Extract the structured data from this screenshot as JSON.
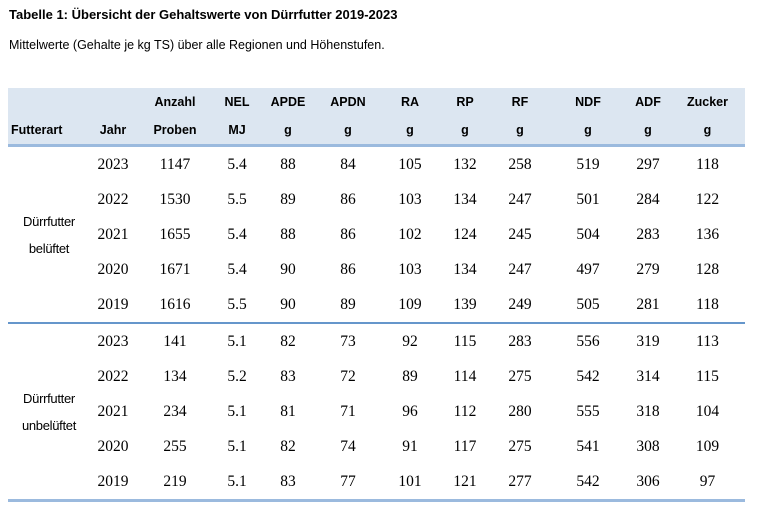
{
  "page": {
    "title": "Tabelle 1: Übersicht der Gehaltswerte von Dürrfutter 2019-2023",
    "subtitle": "Mittelwerte (Gehalte je kg TS) über alle Regionen und Höhenstufen."
  },
  "colors": {
    "header_bg": "#dce6f1",
    "rule_light": "#9bbade",
    "rule_accent": "#6596cb",
    "text": "#000000",
    "background": "#ffffff"
  },
  "table": {
    "columns": [
      {
        "line1": "",
        "line2": "Futterart"
      },
      {
        "line1": "",
        "line2": "Jahr"
      },
      {
        "line1": "Anzahl",
        "line2": "Proben"
      },
      {
        "line1": "NEL",
        "line2": "MJ"
      },
      {
        "line1": "APDE",
        "line2": "g"
      },
      {
        "line1": "APDN",
        "line2": "g"
      },
      {
        "line1": "RA",
        "line2": "g"
      },
      {
        "line1": "RP",
        "line2": "g"
      },
      {
        "line1": "RF",
        "line2": "g"
      },
      {
        "line1": "NDF",
        "line2": "g"
      },
      {
        "line1": "ADF",
        "line2": "g"
      },
      {
        "line1": "Zucker",
        "line2": "g"
      }
    ],
    "groups": [
      {
        "futterart": [
          "Dürrfutter",
          "belüftet"
        ],
        "rows": [
          {
            "jahr": "2023",
            "proben": "1147",
            "nel": "5.4",
            "apde": "88",
            "apdn": "84",
            "ra": "105",
            "rp": "132",
            "rf": "258",
            "ndf": "519",
            "adf": "297",
            "zucker": "118"
          },
          {
            "jahr": "2022",
            "proben": "1530",
            "nel": "5.5",
            "apde": "89",
            "apdn": "86",
            "ra": "103",
            "rp": "134",
            "rf": "247",
            "ndf": "501",
            "adf": "284",
            "zucker": "122"
          },
          {
            "jahr": "2021",
            "proben": "1655",
            "nel": "5.4",
            "apde": "88",
            "apdn": "86",
            "ra": "102",
            "rp": "124",
            "rf": "245",
            "ndf": "504",
            "adf": "283",
            "zucker": "136"
          },
          {
            "jahr": "2020",
            "proben": "1671",
            "nel": "5.4",
            "apde": "90",
            "apdn": "86",
            "ra": "103",
            "rp": "134",
            "rf": "247",
            "ndf": "497",
            "adf": "279",
            "zucker": "128"
          },
          {
            "jahr": "2019",
            "proben": "1616",
            "nel": "5.5",
            "apde": "90",
            "apdn": "89",
            "ra": "109",
            "rp": "139",
            "rf": "249",
            "ndf": "505",
            "adf": "281",
            "zucker": "118"
          }
        ]
      },
      {
        "futterart": [
          "Dürrfutter",
          "unbelüftet"
        ],
        "rows": [
          {
            "jahr": "2023",
            "proben": "141",
            "nel": "5.1",
            "apde": "82",
            "apdn": "73",
            "ra": "92",
            "rp": "115",
            "rf": "283",
            "ndf": "556",
            "adf": "319",
            "zucker": "113"
          },
          {
            "jahr": "2022",
            "proben": "134",
            "nel": "5.2",
            "apde": "83",
            "apdn": "72",
            "ra": "89",
            "rp": "114",
            "rf": "275",
            "ndf": "542",
            "adf": "314",
            "zucker": "115"
          },
          {
            "jahr": "2021",
            "proben": "234",
            "nel": "5.1",
            "apde": "81",
            "apdn": "71",
            "ra": "96",
            "rp": "112",
            "rf": "280",
            "ndf": "555",
            "adf": "318",
            "zucker": "104"
          },
          {
            "jahr": "2020",
            "proben": "255",
            "nel": "5.1",
            "apde": "82",
            "apdn": "74",
            "ra": "91",
            "rp": "117",
            "rf": "275",
            "ndf": "541",
            "adf": "308",
            "zucker": "109"
          },
          {
            "jahr": "2019",
            "proben": "219",
            "nel": "5.1",
            "apde": "83",
            "apdn": "77",
            "ra": "101",
            "rp": "121",
            "rf": "277",
            "ndf": "542",
            "adf": "306",
            "zucker": "97"
          }
        ]
      }
    ]
  }
}
